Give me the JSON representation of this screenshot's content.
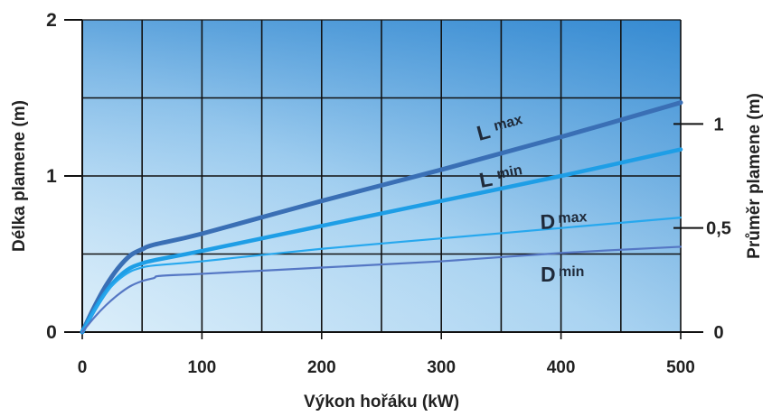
{
  "chart_data": {
    "type": "line",
    "title": "",
    "xlabel": "Výkon hořáku (kW)",
    "ylabel_left": "Délka plamene (m)",
    "ylabel_right": "Průměr plamene (m)",
    "xlim": [
      0,
      500
    ],
    "ylim_left": [
      0,
      2
    ],
    "ylim_right": [
      0,
      1.5
    ],
    "x_ticks": [
      "0",
      "100",
      "200",
      "300",
      "400",
      "500"
    ],
    "y_ticks_left": [
      "0",
      "1",
      "2"
    ],
    "y_ticks_right": [
      "0",
      "0,5",
      "1"
    ],
    "grid": true,
    "series": [
      {
        "name": "L max",
        "label_main": "L",
        "label_sub": "max",
        "axis": "left",
        "color": "#3a6fb5",
        "x": [
          0,
          10,
          20,
          30,
          40,
          50,
          60,
          100,
          200,
          300,
          400,
          500
        ],
        "y": [
          0,
          0.16,
          0.3,
          0.41,
          0.49,
          0.53,
          0.56,
          0.63,
          0.84,
          1.04,
          1.25,
          1.47
        ]
      },
      {
        "name": "L min",
        "label_main": "L",
        "label_sub": "min",
        "axis": "left",
        "color": "#1e9ee6",
        "x": [
          0,
          10,
          20,
          30,
          40,
          50,
          60,
          100,
          200,
          300,
          400,
          500
        ],
        "y": [
          0,
          0.14,
          0.26,
          0.35,
          0.41,
          0.44,
          0.46,
          0.52,
          0.68,
          0.84,
          1.0,
          1.17
        ]
      },
      {
        "name": "D max",
        "label_main": "D",
        "label_sub": "max",
        "axis": "right",
        "color": "#27a8ee",
        "x": [
          0,
          10,
          20,
          30,
          40,
          50,
          60,
          100,
          200,
          300,
          400,
          500
        ],
        "y": [
          0,
          0.1,
          0.19,
          0.25,
          0.29,
          0.31,
          0.32,
          0.34,
          0.4,
          0.45,
          0.5,
          0.55
        ]
      },
      {
        "name": "D min",
        "label_main": "D",
        "label_sub": "min",
        "axis": "right",
        "color": "#5577c4",
        "x": [
          0,
          10,
          20,
          30,
          40,
          50,
          60,
          65,
          100,
          200,
          300,
          400,
          500
        ],
        "y": [
          0,
          0.07,
          0.13,
          0.18,
          0.22,
          0.245,
          0.26,
          0.27,
          0.28,
          0.31,
          0.34,
          0.38,
          0.41
        ]
      }
    ]
  },
  "colors": {
    "plot_bg_left": "#3d8fd3",
    "plot_bg_right": "#4a96d9",
    "plot_bg_light": "#dbeefa",
    "grid": "#111111",
    "text": "#222222"
  }
}
